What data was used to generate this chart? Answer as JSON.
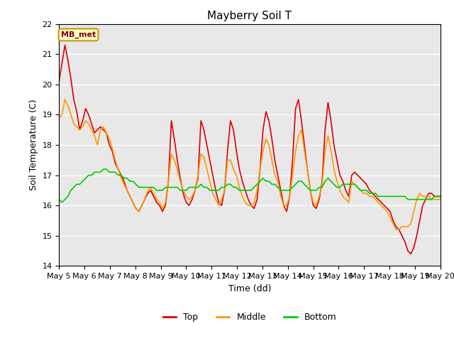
{
  "title": "Mayberry Soil T",
  "xlabel": "Time (dd)",
  "ylabel": "Soil Temperature (C)",
  "ylim": [
    14.0,
    22.0
  ],
  "xlim": [
    0,
    15
  ],
  "yticks": [
    14.0,
    15.0,
    16.0,
    17.0,
    18.0,
    19.0,
    20.0,
    21.0,
    22.0
  ],
  "xtick_labels": [
    "May 5",
    "May 6",
    "May 7",
    "May 8",
    "May 9",
    "May 10",
    "May 11",
    "May 12",
    "May 13",
    "May 14",
    "May 15",
    "May 16",
    "May 17",
    "May 18",
    "May 19",
    "May 20"
  ],
  "annotation_text": "MB_met",
  "annotation_bg": "#ffffcc",
  "annotation_border": "#cc9900",
  "annotation_text_color": "#800000",
  "line_colors": {
    "Top": "#dd0000",
    "Middle": "#ff9900",
    "Bottom": "#00cc00"
  },
  "line_width": 1.2,
  "plot_bg": "#e8e8e8",
  "fig_bg": "#ffffff",
  "grid_color": "#ffffff",
  "title_fontsize": 11,
  "label_fontsize": 9,
  "tick_fontsize": 8,
  "top_data": [
    20.1,
    20.7,
    21.3,
    20.8,
    20.2,
    19.5,
    19.1,
    18.5,
    18.8,
    19.2,
    19.0,
    18.7,
    18.4,
    18.5,
    18.6,
    18.5,
    18.4,
    18.0,
    17.8,
    17.4,
    17.2,
    17.0,
    16.8,
    16.5,
    16.3,
    16.1,
    15.9,
    15.8,
    16.0,
    16.2,
    16.4,
    16.5,
    16.3,
    16.1,
    16.0,
    15.8,
    16.0,
    16.8,
    18.8,
    18.2,
    17.5,
    16.9,
    16.4,
    16.1,
    16.0,
    16.2,
    16.5,
    16.9,
    18.8,
    18.5,
    18.0,
    17.5,
    17.0,
    16.5,
    16.1,
    16.0,
    16.5,
    17.8,
    18.8,
    18.5,
    17.8,
    17.2,
    16.8,
    16.5,
    16.2,
    16.0,
    15.9,
    16.2,
    17.2,
    18.5,
    19.1,
    18.8,
    18.2,
    17.5,
    17.0,
    16.5,
    16.0,
    15.8,
    16.3,
    17.5,
    19.2,
    19.5,
    18.8,
    18.0,
    17.2,
    16.5,
    16.0,
    15.9,
    16.2,
    16.8,
    18.5,
    19.4,
    18.8,
    18.0,
    17.5,
    17.0,
    16.8,
    16.5,
    16.3,
    17.0,
    17.1,
    17.0,
    16.9,
    16.8,
    16.7,
    16.5,
    16.4,
    16.3,
    16.2,
    16.1,
    16.0,
    15.9,
    15.8,
    15.5,
    15.3,
    15.2,
    15.0,
    14.8,
    14.5,
    14.4,
    14.6,
    15.0,
    15.5,
    16.0,
    16.2,
    16.4,
    16.4,
    16.3,
    16.3,
    16.3
  ],
  "middle_data": [
    18.9,
    19.0,
    19.5,
    19.3,
    19.0,
    18.7,
    18.6,
    18.5,
    18.6,
    18.8,
    18.7,
    18.5,
    18.3,
    18.0,
    18.5,
    18.6,
    18.4,
    18.2,
    17.9,
    17.5,
    17.2,
    16.9,
    16.7,
    16.5,
    16.3,
    16.1,
    15.9,
    15.8,
    16.0,
    16.2,
    16.5,
    16.6,
    16.4,
    16.2,
    16.1,
    15.9,
    16.1,
    16.8,
    17.7,
    17.5,
    17.2,
    16.8,
    16.5,
    16.3,
    16.2,
    16.3,
    16.5,
    17.0,
    17.7,
    17.6,
    17.2,
    16.8,
    16.4,
    16.2,
    16.0,
    16.2,
    16.5,
    17.5,
    17.5,
    17.2,
    17.0,
    16.6,
    16.3,
    16.1,
    16.0,
    16.0,
    16.1,
    16.5,
    17.2,
    17.8,
    18.2,
    18.0,
    17.5,
    17.0,
    16.8,
    16.3,
    16.0,
    16.0,
    16.3,
    17.0,
    17.8,
    18.3,
    18.5,
    17.8,
    17.2,
    16.5,
    16.1,
    16.0,
    16.3,
    16.7,
    17.8,
    18.3,
    17.8,
    17.2,
    16.8,
    16.5,
    16.3,
    16.2,
    16.1,
    16.8,
    16.7,
    16.6,
    16.5,
    16.4,
    16.4,
    16.3,
    16.3,
    16.2,
    16.1,
    16.0,
    15.9,
    15.8,
    15.6,
    15.4,
    15.2,
    15.2,
    15.3,
    15.3,
    15.3,
    15.4,
    15.8,
    16.2,
    16.4,
    16.3,
    16.3,
    16.3,
    16.2,
    16.2,
    16.2,
    16.2
  ],
  "bottom_data": [
    16.2,
    16.1,
    16.2,
    16.3,
    16.5,
    16.6,
    16.7,
    16.7,
    16.8,
    16.9,
    17.0,
    17.0,
    17.1,
    17.1,
    17.1,
    17.2,
    17.2,
    17.1,
    17.1,
    17.1,
    17.0,
    17.0,
    16.9,
    16.9,
    16.8,
    16.8,
    16.7,
    16.6,
    16.6,
    16.6,
    16.6,
    16.6,
    16.6,
    16.5,
    16.5,
    16.5,
    16.6,
    16.6,
    16.6,
    16.6,
    16.6,
    16.5,
    16.5,
    16.5,
    16.6,
    16.6,
    16.6,
    16.6,
    16.7,
    16.6,
    16.6,
    16.5,
    16.5,
    16.5,
    16.5,
    16.6,
    16.6,
    16.7,
    16.7,
    16.6,
    16.6,
    16.5,
    16.5,
    16.5,
    16.5,
    16.5,
    16.6,
    16.7,
    16.8,
    16.9,
    16.8,
    16.8,
    16.7,
    16.7,
    16.6,
    16.5,
    16.5,
    16.5,
    16.5,
    16.6,
    16.7,
    16.8,
    16.8,
    16.7,
    16.6,
    16.5,
    16.5,
    16.5,
    16.6,
    16.6,
    16.8,
    16.9,
    16.8,
    16.7,
    16.6,
    16.6,
    16.7,
    16.7,
    16.7,
    16.7,
    16.7,
    16.6,
    16.5,
    16.5,
    16.5,
    16.4,
    16.4,
    16.4,
    16.3,
    16.3,
    16.3,
    16.3,
    16.3,
    16.3,
    16.3,
    16.3,
    16.3,
    16.3,
    16.2,
    16.2,
    16.2,
    16.2,
    16.2,
    16.2,
    16.2,
    16.2,
    16.2,
    16.3,
    16.3,
    16.3
  ]
}
